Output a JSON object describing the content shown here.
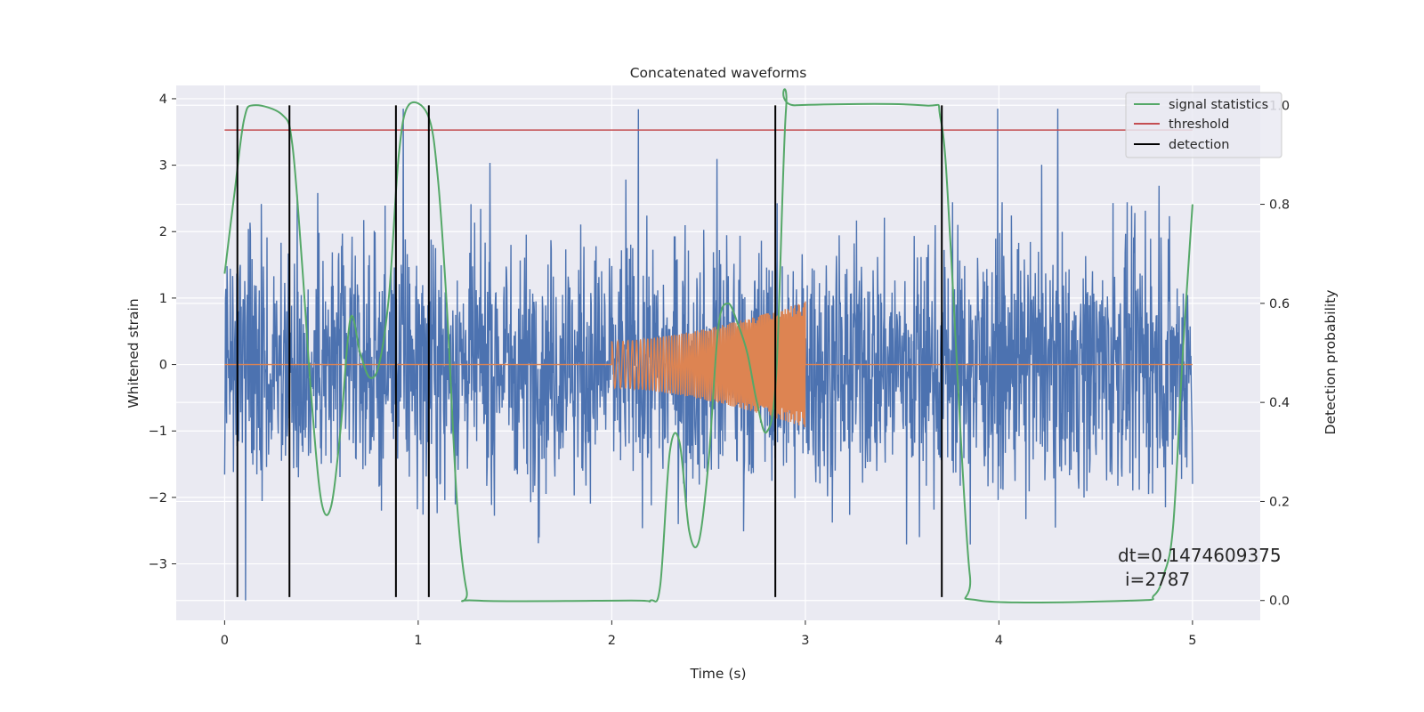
{
  "chart_data": {
    "type": "line",
    "title": "Concatenated waveforms",
    "xlabel": "Time (s)",
    "ylabel": "Whitened strain",
    "y2label": "Detection probability",
    "xlim": [
      -0.25,
      5.35
    ],
    "ylim": [
      -3.85,
      4.2
    ],
    "y2lim": [
      -0.04,
      1.04
    ],
    "xticks": [
      0,
      1,
      2,
      3,
      4,
      5
    ],
    "xtick_labels": [
      "0",
      "1",
      "2",
      "3",
      "4",
      "5"
    ],
    "yticks": [
      -3,
      -2,
      -1,
      0,
      1,
      2,
      3,
      4
    ],
    "ytick_labels": [
      "−3",
      "−2",
      "−1",
      "0",
      "1",
      "2",
      "3",
      "4"
    ],
    "y2ticks": [
      0.0,
      0.2,
      0.4,
      0.6,
      0.8,
      1.0
    ],
    "y2tick_labels": [
      "0.0",
      "0.2",
      "0.4",
      "0.6",
      "0.8",
      "1.0"
    ],
    "grid": true,
    "legend_position": "top-right",
    "colors": {
      "strain": "#4c72b0",
      "injection": "#dd8452",
      "signal_statistics": "#55a868",
      "threshold": "#c44e52",
      "detection": "#000000",
      "background": "#eaeaf2",
      "grid": "#ffffff"
    },
    "strain": {
      "x_range": [
        0,
        5
      ],
      "typical_amplitude": 1.2,
      "max_value": 3.85,
      "min_value": -3.55
    },
    "injection": {
      "x_start": 2.0,
      "x_end": 3.0,
      "start_amplitude": 0.35,
      "end_amplitude": 0.95
    },
    "series": [
      {
        "name": "signal statistics",
        "axis": "y2",
        "x": [
          0.0,
          0.05,
          0.1,
          0.15,
          0.3,
          0.35,
          0.4,
          0.45,
          0.5,
          0.55,
          0.6,
          0.65,
          0.7,
          0.75,
          0.8,
          0.85,
          0.9,
          0.95,
          1.05,
          1.1,
          1.15,
          1.2,
          1.25,
          1.3,
          2.1,
          2.2,
          2.25,
          2.3,
          2.35,
          2.4,
          2.45,
          2.5,
          2.55,
          2.6,
          2.65,
          2.7,
          2.75,
          2.8,
          2.85,
          2.9,
          2.95,
          3.6,
          3.7,
          3.75,
          3.8,
          3.85,
          3.9,
          4.7,
          4.8,
          4.85,
          4.9,
          4.95,
          5.0
        ],
        "y": [
          0.66,
          0.82,
          0.97,
          1.0,
          0.98,
          0.92,
          0.68,
          0.4,
          0.2,
          0.19,
          0.35,
          0.57,
          0.5,
          0.45,
          0.48,
          0.62,
          0.9,
          1.0,
          0.98,
          0.86,
          0.58,
          0.2,
          0.02,
          0.0,
          0.0,
          0.0,
          0.03,
          0.3,
          0.32,
          0.14,
          0.12,
          0.28,
          0.55,
          0.6,
          0.56,
          0.5,
          0.4,
          0.34,
          0.46,
          0.99,
          1.0,
          1.0,
          0.97,
          0.72,
          0.35,
          0.05,
          0.0,
          0.0,
          0.01,
          0.05,
          0.15,
          0.5,
          0.8
        ]
      },
      {
        "name": "threshold",
        "axis": "y2",
        "x": [
          0,
          5
        ],
        "y": [
          0.95,
          0.95
        ]
      },
      {
        "name": "detection",
        "axis": "y",
        "x": [
          0.066,
          0.335,
          0.885,
          1.055,
          2.845,
          3.705
        ],
        "y_range": [
          -3.5,
          3.9
        ]
      }
    ],
    "annotation": {
      "dt": "dt=0.1474609375",
      "i": "i=2787"
    }
  }
}
